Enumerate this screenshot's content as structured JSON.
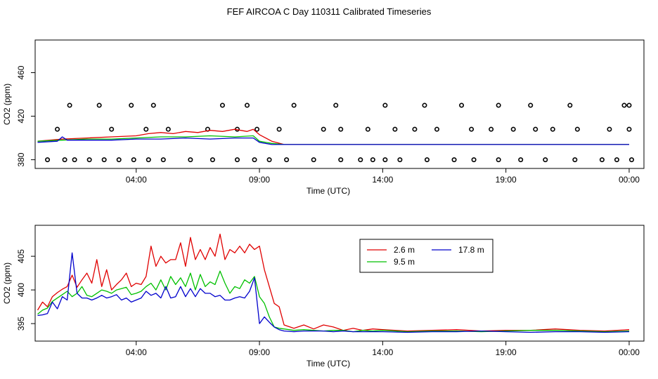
{
  "title": "FEF AIRCOA C  Day 110311  Calibrated Timeseries",
  "colors": {
    "s26": "#e00000",
    "s95": "#00c000",
    "s178": "#0000cc",
    "flags": "#000000"
  },
  "chart_data": [
    {
      "type": "line",
      "panel": "top",
      "xlabel": "Time (UTC)",
      "ylabel": "CO2 (ppm)",
      "xlim": [
        23.9,
        48.6
      ],
      "ylim": [
        372,
        490
      ],
      "xticks": [
        28,
        33,
        38,
        43,
        48
      ],
      "xtick_labels": [
        "04:00",
        "09:00",
        "14:00",
        "19:00",
        "00:00"
      ],
      "yticks": [
        380,
        420,
        460
      ],
      "ytick_labels": [
        "380",
        "420",
        "460"
      ],
      "series": [
        {
          "name": "2.6 m",
          "color_key": "s26",
          "x": [
            24,
            25,
            26,
            27,
            28,
            28.5,
            29,
            29.5,
            30,
            30.5,
            31,
            31.5,
            32,
            32.5,
            32.75,
            33,
            33.5,
            34,
            36,
            38,
            40,
            42,
            44,
            46,
            48
          ],
          "y": [
            397,
            399,
            400,
            401,
            402,
            404,
            405,
            404,
            406,
            405,
            407,
            406,
            408,
            406,
            408,
            403,
            397,
            394,
            394,
            394,
            394,
            394,
            394,
            394,
            394
          ]
        },
        {
          "name": "9.5 m",
          "color_key": "s95",
          "x": [
            24,
            25,
            26,
            27,
            28,
            29,
            30,
            31,
            32,
            32.75,
            33,
            33.5,
            34,
            36,
            38,
            40,
            42,
            44,
            46,
            48
          ],
          "y": [
            397,
            398,
            399,
            399,
            400,
            401,
            401,
            402,
            401,
            402,
            397,
            395,
            394,
            394,
            394,
            394,
            394,
            394,
            394,
            394
          ]
        },
        {
          "name": "17.8 m",
          "color_key": "s178",
          "x": [
            24,
            24.8,
            25,
            25.2,
            26,
            27,
            28,
            29,
            30,
            31,
            32,
            32.75,
            33,
            33.5,
            34,
            36,
            38,
            40,
            42,
            44,
            46,
            48
          ],
          "y": [
            396,
            397,
            401,
            398,
            398,
            398,
            399,
            399,
            400,
            399,
            400,
            400,
            396,
            394,
            394,
            394,
            394,
            394,
            394,
            394,
            394,
            394
          ]
        }
      ],
      "flag_points": {
        "x": [
          24.4,
          25.1,
          25.5,
          26.1,
          26.7,
          27.3,
          27.9,
          28.5,
          29.1,
          30.2,
          31.1,
          32.1,
          32.8,
          33.4,
          34.1,
          35.2,
          36.3,
          37.1,
          37.6,
          38.1,
          38.7,
          39.8,
          40.9,
          41.7,
          42.7,
          43.6,
          44.6,
          45.8,
          46.9,
          47.5,
          48.1,
          24.8,
          27.0,
          28.4,
          29.3,
          30.9,
          32.1,
          32.9,
          33.8,
          35.6,
          36.3,
          37.4,
          38.5,
          39.3,
          40.2,
          41.6,
          42.4,
          43.3,
          44.2,
          44.9,
          45.9,
          47.2,
          48.0,
          25.3,
          26.5,
          27.8,
          28.7,
          31.5,
          32.5,
          34.4,
          36.1,
          38.1,
          39.7,
          41.2,
          42.7,
          44.0,
          45.6,
          47.8,
          48.0
        ],
        "y": [
          380,
          380,
          380,
          380,
          380,
          380,
          380,
          380,
          380,
          380,
          380,
          380,
          380,
          380,
          380,
          380,
          380,
          380,
          380,
          380,
          380,
          380,
          380,
          380,
          380,
          380,
          380,
          380,
          380,
          380,
          380,
          408,
          408,
          408,
          408,
          408,
          408,
          408,
          408,
          408,
          408,
          408,
          408,
          408,
          408,
          408,
          408,
          408,
          408,
          408,
          408,
          408,
          408,
          430,
          430,
          430,
          430,
          430,
          430,
          430,
          430,
          430,
          430,
          430,
          430,
          430,
          430,
          430,
          430
        ]
      }
    },
    {
      "type": "line",
      "panel": "bottom",
      "xlabel": "Time (UTC)",
      "ylabel": "CO2 (ppm)",
      "xlim": [
        23.9,
        48.6
      ],
      "ylim": [
        392.4,
        409.6
      ],
      "xticks": [
        28,
        33,
        38,
        43,
        48
      ],
      "xtick_labels": [
        "04:00",
        "09:00",
        "14:00",
        "19:00",
        "00:00"
      ],
      "yticks": [
        395,
        400,
        405
      ],
      "ytick_labels": [
        "395",
        "400",
        "405"
      ],
      "legend": {
        "position": "top-center",
        "entries": [
          "2.6 m",
          "9.5 m",
          "17.8 m"
        ]
      },
      "series": [
        {
          "name": "2.6 m",
          "color_key": "s26",
          "x": [
            24,
            24.2,
            24.4,
            24.6,
            24.8,
            25.0,
            25.2,
            25.4,
            25.6,
            25.8,
            26.0,
            26.2,
            26.4,
            26.6,
            26.8,
            27.0,
            27.2,
            27.4,
            27.6,
            27.8,
            28.0,
            28.2,
            28.4,
            28.6,
            28.8,
            29.0,
            29.2,
            29.4,
            29.6,
            29.8,
            30.0,
            30.2,
            30.4,
            30.6,
            30.8,
            31.0,
            31.2,
            31.4,
            31.6,
            31.8,
            32.0,
            32.2,
            32.4,
            32.6,
            32.8,
            33.0,
            33.2,
            33.4,
            33.6,
            33.8,
            34.0,
            34.4,
            34.8,
            35.2,
            35.6,
            36.0,
            36.4,
            36.8,
            37.2,
            37.6,
            38.0,
            39.0,
            40.0,
            41.0,
            42.0,
            43.0,
            44.0,
            45.0,
            46.0,
            47.0,
            48.0
          ],
          "y": [
            397.0,
            398.2,
            397.5,
            399.0,
            399.6,
            400.1,
            400.5,
            402.2,
            400.4,
            401.5,
            402.5,
            401.0,
            404.5,
            400.5,
            403.0,
            400.0,
            400.8,
            401.5,
            402.5,
            400.5,
            401.0,
            400.8,
            402.0,
            406.5,
            403.5,
            405.0,
            404.0,
            404.5,
            404.5,
            407.0,
            403.5,
            407.8,
            404.5,
            406.0,
            404.5,
            406.3,
            405.0,
            408.3,
            404.5,
            406.0,
            405.5,
            406.5,
            405.5,
            406.8,
            406.0,
            406.5,
            403.0,
            400.5,
            398.0,
            397.5,
            394.8,
            394.3,
            394.8,
            394.2,
            394.8,
            394.5,
            394.0,
            394.3,
            394.0,
            394.2,
            394.1,
            393.9,
            394.0,
            394.1,
            393.9,
            394.0,
            394.0,
            394.2,
            394.0,
            393.9,
            394.1
          ]
        },
        {
          "name": "9.5 m",
          "color_key": "s95",
          "x": [
            24,
            24.2,
            24.4,
            24.6,
            24.8,
            25.0,
            25.2,
            25.4,
            25.6,
            25.8,
            26.0,
            26.2,
            26.4,
            26.6,
            26.8,
            27.0,
            27.2,
            27.4,
            27.6,
            27.8,
            28.0,
            28.2,
            28.4,
            28.6,
            28.8,
            29.0,
            29.2,
            29.4,
            29.6,
            29.8,
            30.0,
            30.2,
            30.4,
            30.6,
            30.8,
            31.0,
            31.2,
            31.4,
            31.6,
            31.8,
            32.0,
            32.2,
            32.4,
            32.6,
            32.8,
            33.0,
            33.2,
            33.4,
            33.6,
            33.8,
            34.0,
            34.4,
            34.8,
            35.2,
            35.6,
            36.0,
            36.4,
            36.8,
            37.2,
            37.6,
            38.0,
            39.0,
            40.0,
            41.0,
            42.0,
            43.0,
            44.0,
            45.0,
            46.0,
            47.0,
            48.0
          ],
          "y": [
            396.4,
            397.0,
            397.3,
            398.3,
            398.8,
            399.3,
            399.8,
            399.0,
            399.5,
            400.5,
            399.2,
            399.0,
            399.5,
            400.0,
            399.8,
            399.5,
            400.0,
            400.2,
            400.4,
            399.3,
            399.5,
            399.8,
            400.5,
            401.0,
            400.0,
            401.5,
            400.0,
            402.0,
            400.8,
            401.8,
            400.5,
            402.5,
            400.0,
            402.3,
            400.5,
            401.2,
            400.8,
            402.8,
            401.0,
            399.5,
            400.5,
            400.2,
            401.5,
            401.0,
            402.0,
            399.0,
            398.0,
            396.0,
            394.5,
            394.3,
            394.2,
            394.0,
            394.1,
            394.0,
            393.9,
            394.0,
            394.0,
            393.8,
            394.0,
            393.9,
            394.0,
            393.8,
            393.9,
            393.9,
            393.8,
            393.9,
            394.0,
            394.0,
            393.9,
            393.8,
            393.9
          ]
        },
        {
          "name": "17.8 m",
          "color_key": "s178",
          "x": [
            24,
            24.2,
            24.4,
            24.6,
            24.8,
            25.0,
            25.2,
            25.4,
            25.6,
            25.8,
            26.0,
            26.2,
            26.4,
            26.6,
            26.8,
            27.0,
            27.2,
            27.4,
            27.6,
            27.8,
            28.0,
            28.2,
            28.4,
            28.6,
            28.8,
            29.0,
            29.2,
            29.4,
            29.6,
            29.8,
            30.0,
            30.2,
            30.4,
            30.6,
            30.8,
            31.0,
            31.2,
            31.4,
            31.6,
            31.8,
            32.0,
            32.2,
            32.4,
            32.6,
            32.8,
            33.0,
            33.2,
            33.4,
            33.6,
            33.8,
            34.0,
            34.4,
            34.8,
            35.2,
            35.6,
            36.0,
            36.4,
            36.8,
            37.2,
            37.6,
            38.0,
            39.0,
            40.0,
            41.0,
            42.0,
            43.0,
            44.0,
            45.0,
            46.0,
            47.0,
            48.0
          ],
          "y": [
            396.2,
            396.3,
            396.5,
            398.2,
            397.2,
            399.0,
            398.5,
            405.5,
            399.5,
            398.8,
            398.8,
            398.5,
            398.8,
            399.2,
            398.8,
            399.0,
            399.3,
            398.5,
            398.8,
            398.2,
            398.5,
            398.8,
            399.8,
            399.2,
            399.5,
            398.8,
            400.5,
            398.8,
            399.0,
            400.5,
            399.0,
            400.2,
            399.0,
            400.2,
            399.5,
            399.5,
            399.0,
            399.2,
            398.5,
            398.5,
            398.8,
            399.0,
            398.8,
            399.8,
            401.8,
            395.0,
            396.0,
            395.2,
            394.5,
            394.1,
            393.9,
            393.8,
            393.9,
            393.9,
            393.9,
            393.8,
            393.9,
            393.8,
            393.8,
            393.8,
            393.8,
            393.7,
            393.8,
            393.8,
            393.9,
            393.8,
            393.7,
            393.8,
            393.8,
            393.7,
            393.8
          ]
        }
      ]
    }
  ]
}
